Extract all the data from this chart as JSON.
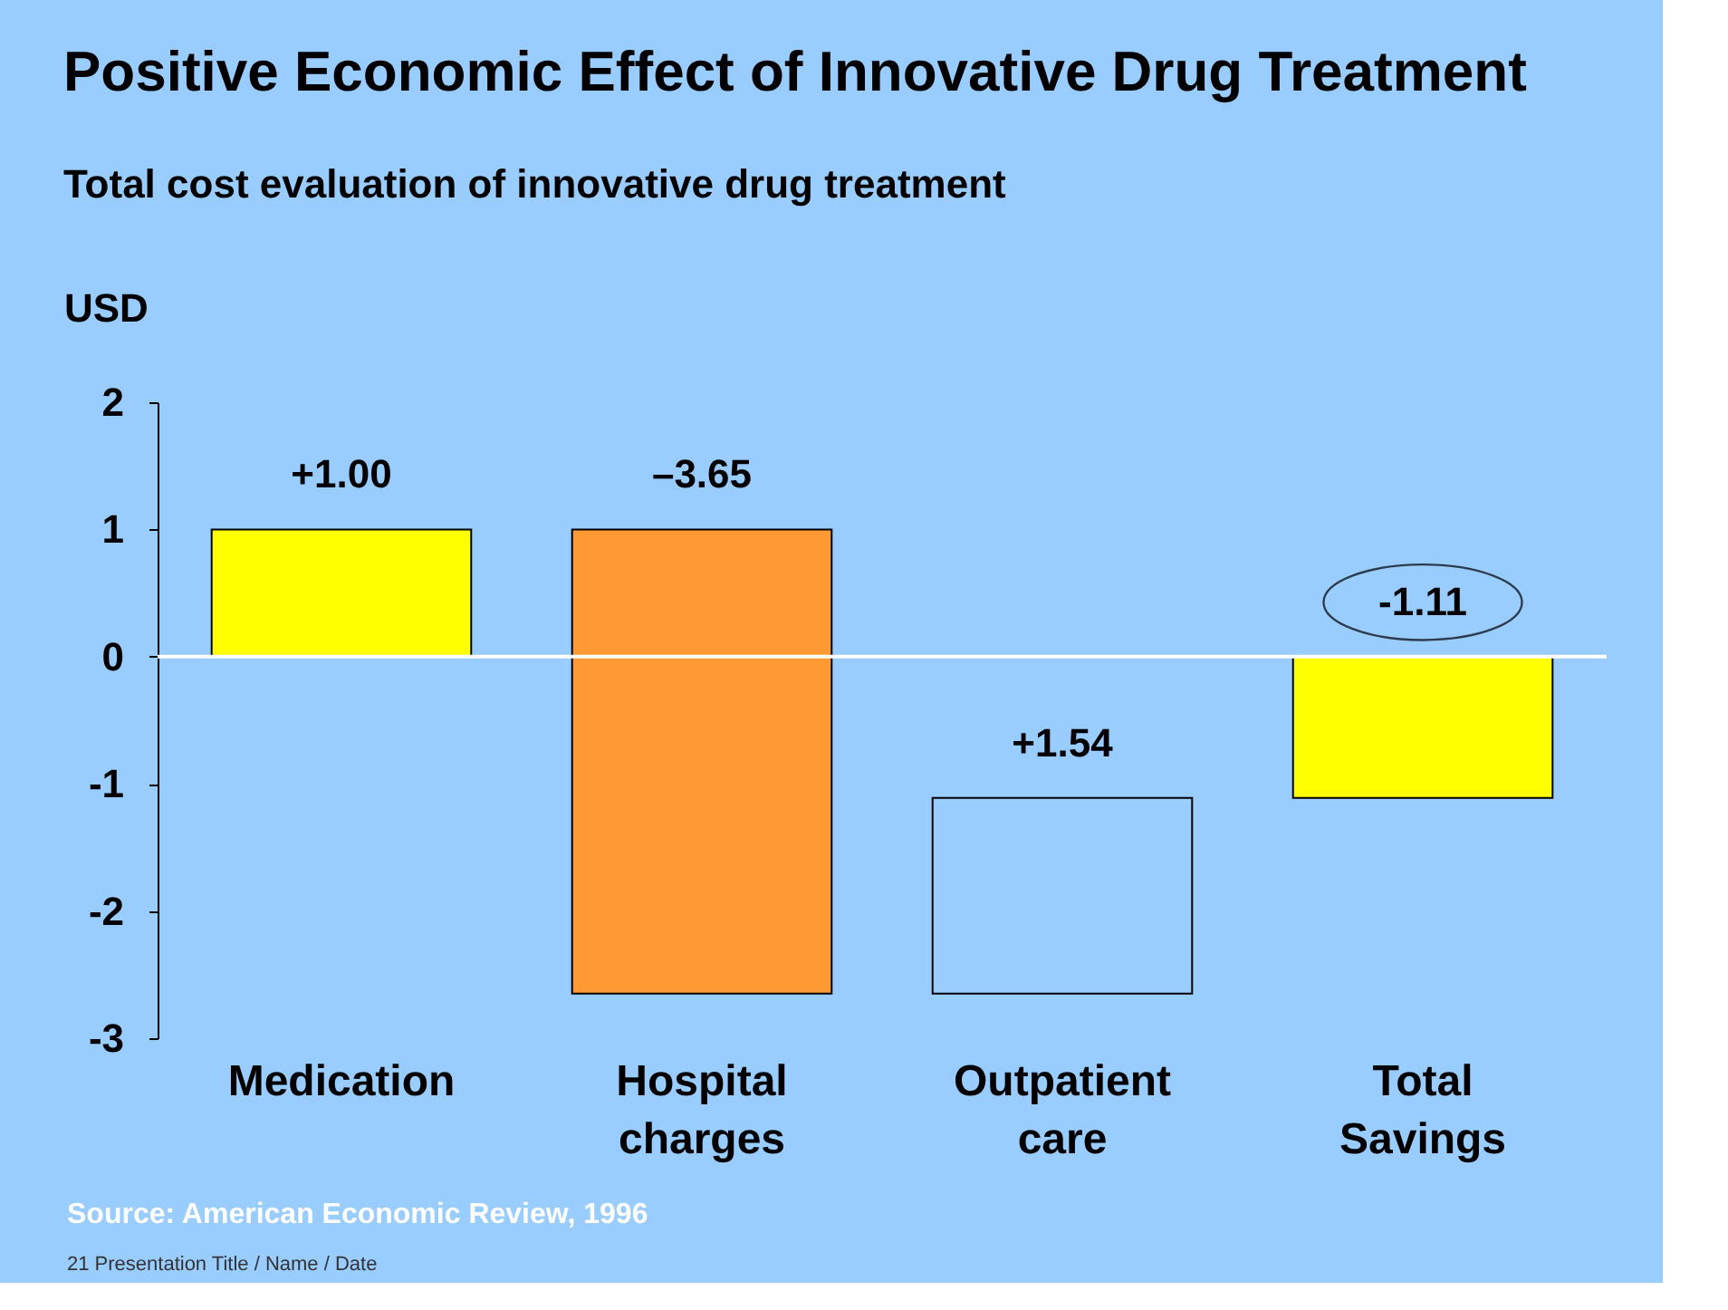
{
  "chart_data": {
    "type": "bar",
    "title": "Positive Economic Effect of Innovative Drug Treatment",
    "subtitle": "Total cost evaluation of innovative drug treatment",
    "ylabel": "USD",
    "categories": [
      "Medication",
      "Hospital charges",
      "Outpatient care",
      "Total Savings"
    ],
    "values": [
      1.0,
      -3.65,
      1.54,
      -1.11
    ],
    "base": [
      0,
      1.0,
      -2.65,
      0
    ],
    "colors": [
      "#ffff00",
      "#ff9933",
      "#99ccff",
      "#ffff00"
    ],
    "value_labels": [
      "+1.00",
      "–3.65",
      "+1.54",
      "-1.11"
    ],
    "ylim": [
      -3,
      2
    ],
    "yticks": [
      -3,
      -2,
      -1,
      0,
      1,
      2
    ],
    "ref_lines": [
      {
        "axis": "y",
        "value": 0,
        "color": "#ffffff"
      }
    ],
    "annotations": [
      "Source: American Economic Review, 1996",
      "21 Presentation Title / Name / Date"
    ]
  }
}
